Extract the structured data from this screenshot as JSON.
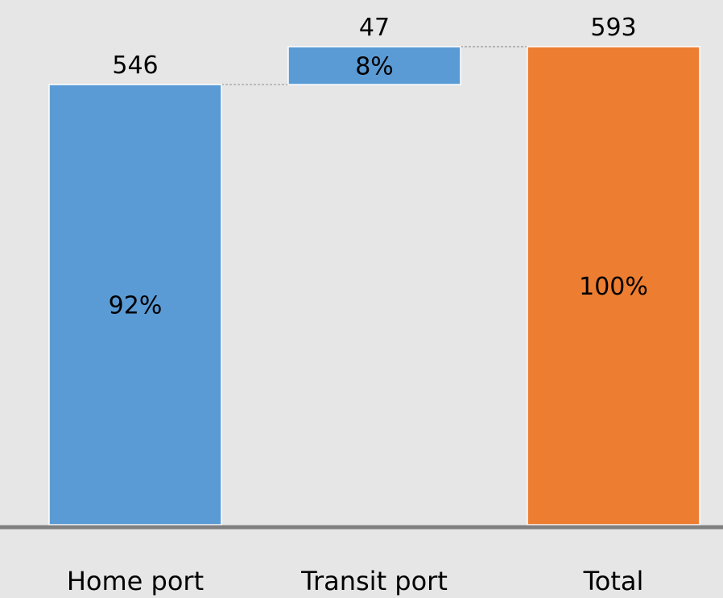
{
  "chart_data": {
    "type": "waterfall",
    "categories": [
      "Home port",
      "Transit port",
      "Total"
    ],
    "values": [
      546,
      47,
      593
    ],
    "value_labels": [
      "546",
      "47",
      "593"
    ],
    "percent_labels": [
      "92%",
      "8%",
      "100%"
    ],
    "bar_kinds": [
      "increase",
      "increase",
      "total"
    ],
    "ylim": [
      0,
      593
    ],
    "colors": {
      "increase": "#5b9bd5",
      "total": "#ed7d31",
      "connector": "#9a9a9a",
      "axis": "#808080",
      "background": "#e6e6e6"
    },
    "grid": false,
    "legend": "none"
  }
}
